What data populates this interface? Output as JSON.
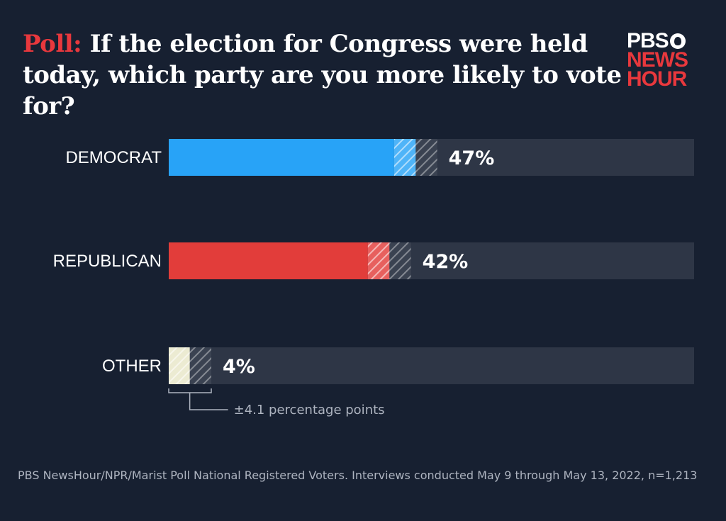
{
  "header": {
    "title_lead": "Poll:",
    "title_rest": "If the election for Congress were held today, which party are you more likely to vote for?"
  },
  "logo": {
    "line1": "PBS",
    "line2": "NEWS",
    "line3": "HOUR",
    "icon": "pbs-head-icon"
  },
  "chart_data": {
    "type": "bar",
    "orientation": "horizontal",
    "categories": [
      "DEMOCRAT",
      "REPUBLICAN",
      "OTHER"
    ],
    "values": [
      47,
      42,
      4
    ],
    "value_labels": [
      "47%",
      "42%",
      "4%"
    ],
    "margin_of_error": 4.1,
    "margin_of_error_label": "±4.1 percentage points",
    "xlim": [
      0,
      100
    ],
    "grid": false,
    "legend": "none",
    "colors": [
      "#28a3f7",
      "#e23d3a",
      "#e8e6c8"
    ]
  },
  "footnote": "PBS NewsHour/NPR/Marist Poll National Registered Voters. Interviews conducted May 9 through May 13, 2022, n=1,213",
  "colors": {
    "background": "#172031",
    "track": "#2e3646",
    "accent_red": "#e8383d"
  }
}
